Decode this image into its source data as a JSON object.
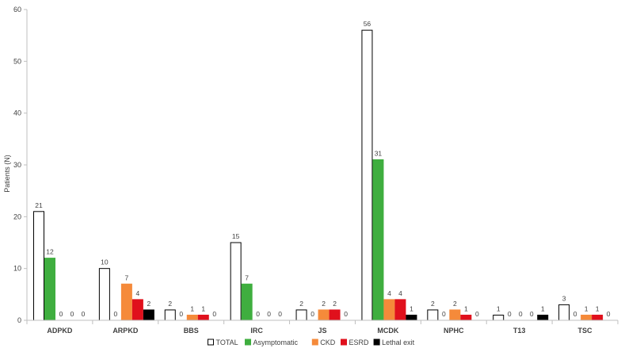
{
  "chart_data": {
    "type": "bar",
    "title": "",
    "xlabel": "",
    "ylabel": "Patients (N)",
    "ylim": [
      0,
      60
    ],
    "yticks": [
      0,
      10,
      20,
      30,
      40,
      50,
      60
    ],
    "grid": false,
    "legend_position": "bottom",
    "categories": [
      "ADPKD",
      "ARPKD",
      "BBS",
      "IRC",
      "JS",
      "MCDK",
      "NPHC",
      "T13",
      "TSC"
    ],
    "series": [
      {
        "name": "TOTAL",
        "color": "#ffffff",
        "stroke": "#000000",
        "values": [
          21,
          10,
          2,
          15,
          2,
          56,
          2,
          1,
          3
        ]
      },
      {
        "name": "Asymptomatic",
        "color": "#3fae3f",
        "stroke": "#3fae3f",
        "values": [
          12,
          0,
          0,
          7,
          0,
          31,
          0,
          0,
          0
        ]
      },
      {
        "name": "CKD",
        "color": "#f58a3a",
        "stroke": "#f58a3a",
        "values": [
          0,
          7,
          1,
          0,
          2,
          4,
          2,
          0,
          1
        ]
      },
      {
        "name": "ESRD",
        "color": "#e0101c",
        "stroke": "#e0101c",
        "values": [
          0,
          4,
          1,
          0,
          2,
          4,
          1,
          0,
          1
        ]
      },
      {
        "name": "Lethal exit",
        "color": "#000000",
        "stroke": "#000000",
        "values": [
          0,
          2,
          0,
          0,
          0,
          1,
          0,
          1,
          0
        ]
      }
    ]
  }
}
